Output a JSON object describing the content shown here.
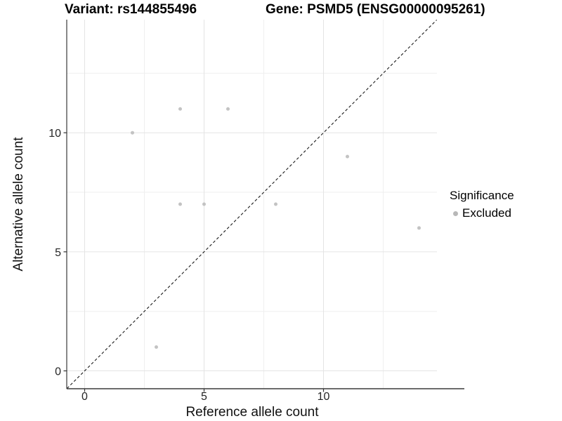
{
  "header": {
    "left_title": "Variant: rs144855496",
    "right_title": "Gene: PSMD5 (ENSG00000095261)"
  },
  "legend": {
    "title": "Significance",
    "items": [
      {
        "label": "Excluded",
        "color": "#b8b8b8"
      }
    ]
  },
  "chart_data": {
    "type": "scatter",
    "xlabel": "Reference allele count",
    "ylabel": "Alternative allele count",
    "xlim": [
      -0.75,
      14.75
    ],
    "ylim": [
      -0.75,
      14.75
    ],
    "x_ticks": [
      0,
      5,
      10
    ],
    "y_ticks": [
      0,
      5,
      10
    ],
    "x_minor_ticks": [
      2.5,
      7.5,
      12.5
    ],
    "y_minor_ticks": [
      2.5,
      7.5,
      12.5
    ],
    "grid": true,
    "legend_position": "right",
    "series": [
      {
        "name": "Excluded",
        "color": "#c3c3c3",
        "points": [
          [
            2,
            10
          ],
          [
            3,
            1
          ],
          [
            4,
            7
          ],
          [
            4,
            11
          ],
          [
            5,
            7
          ],
          [
            6,
            11
          ],
          [
            8,
            7
          ],
          [
            11,
            9
          ],
          [
            14,
            6
          ]
        ]
      }
    ],
    "reference_line": {
      "kind": "identity",
      "from": [
        -0.74,
        -0.74
      ],
      "to": [
        14.74,
        14.74
      ],
      "style": "dashed",
      "color": "#1a1a1a"
    },
    "colors": {
      "background": "#ffffff",
      "grid_major": "#e4e4e4",
      "grid_minor": "#efefef",
      "axis_line": "#3a3a3a",
      "tick_label": "#262626",
      "point": "#c3c3c3"
    }
  }
}
